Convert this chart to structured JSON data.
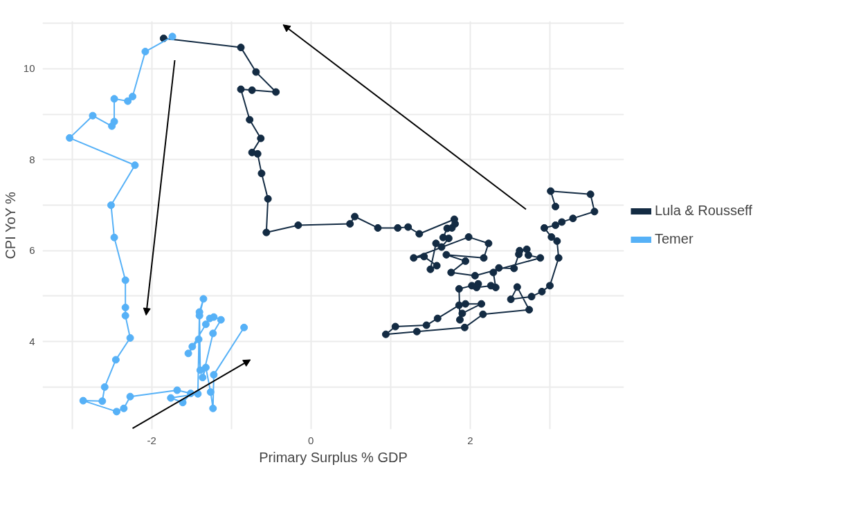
{
  "chart_data": {
    "type": "line",
    "xlabel": "Primary Surplus % GDP",
    "ylabel": "CPI YoY %",
    "marker": "circle",
    "grid": true,
    "legend": "right",
    "xlim": [
      -3.37,
      3.93
    ],
    "ylim": [
      2.07,
      11.05
    ],
    "xticks": [
      {
        "value": -3,
        "label": null
      },
      -2,
      {
        "value": -1,
        "label": null
      },
      0,
      {
        "value": 1,
        "label": null
      },
      2,
      {
        "value": 3,
        "label": null
      }
    ],
    "yticks": [
      {
        "value": 3,
        "label": null
      },
      4,
      {
        "value": 5,
        "label": null
      },
      6,
      {
        "value": 7,
        "label": null
      },
      8,
      {
        "value": 9,
        "label": null
      },
      10,
      {
        "value": 11,
        "label": null
      }
    ],
    "series": [
      {
        "name": "Lula & Rousseff",
        "color": "#132b43",
        "x": [
          3.07,
          3.01,
          3.51,
          3.56,
          3.29,
          3.15,
          3.07,
          2.93,
          3.02,
          3.09,
          3.11,
          3.0,
          2.9,
          2.77,
          2.51,
          2.59,
          2.74,
          2.16,
          1.93,
          1.33,
          0.94,
          1.06,
          1.45,
          1.59,
          1.86,
          1.94,
          2.14,
          1.9,
          1.87,
          1.86,
          2.02,
          2.1,
          2.08,
          2.26,
          2.32,
          2.29,
          2.36,
          2.55,
          2.61,
          2.62,
          2.71,
          2.73,
          2.88,
          2.06,
          1.76,
          1.94,
          1.7,
          2.17,
          2.23,
          1.98,
          1.29,
          1.42,
          1.58,
          1.5,
          1.57,
          1.64,
          1.73,
          1.66,
          1.71,
          1.77,
          1.81,
          1.8,
          1.36,
          1.22,
          1.09,
          0.84,
          0.55,
          0.49,
          -0.16,
          -0.56,
          -0.54,
          -0.62,
          -0.67,
          -0.74,
          -0.63,
          -0.77,
          -0.88,
          -0.74,
          -0.44,
          -0.69,
          -0.88,
          -1.85
        ],
        "values": [
          6.97,
          7.31,
          7.24,
          6.86,
          6.71,
          6.63,
          6.56,
          6.5,
          6.3,
          6.21,
          5.84,
          5.23,
          5.1,
          4.99,
          4.93,
          5.2,
          4.7,
          4.6,
          4.31,
          4.22,
          4.16,
          4.33,
          4.36,
          4.51,
          4.8,
          4.83,
          4.83,
          4.62,
          4.48,
          5.16,
          5.23,
          5.27,
          5.19,
          5.23,
          5.19,
          5.52,
          5.62,
          5.61,
          5.92,
          6.0,
          6.03,
          5.9,
          5.84,
          5.45,
          5.52,
          5.77,
          5.91,
          5.84,
          6.16,
          6.3,
          5.84,
          5.87,
          5.67,
          5.59,
          6.16,
          6.08,
          6.27,
          6.29,
          6.49,
          6.5,
          6.59,
          6.69,
          6.37,
          6.52,
          6.5,
          6.5,
          6.75,
          6.59,
          6.56,
          6.4,
          7.14,
          7.7,
          8.13,
          8.16,
          8.47,
          8.88,
          9.55,
          9.53,
          9.49,
          9.93,
          10.47,
          10.67
        ]
      },
      {
        "name": "Temer",
        "color": "#56b1f7",
        "x": [
          -1.74,
          -2.08,
          -2.24,
          -2.3,
          -2.47,
          -2.47,
          -2.5,
          -2.74,
          -3.03,
          -2.21,
          -2.51,
          -2.47,
          -2.33,
          -2.33,
          -2.33,
          -2.27,
          -2.45,
          -2.59,
          -2.62,
          -2.86,
          -2.44,
          -2.35,
          -2.27,
          -1.68,
          -1.51,
          -1.61,
          -1.76,
          -1.42,
          -1.4,
          -1.35,
          -1.4,
          -1.39,
          -1.41,
          -1.54,
          -1.49,
          -1.32,
          -1.27,
          -1.22,
          -1.13,
          -1.23,
          -1.36,
          -1.32,
          -1.26,
          -1.23,
          -1.22,
          -0.84
        ],
        "values": [
          10.71,
          10.38,
          9.39,
          9.29,
          9.34,
          8.84,
          8.74,
          8.97,
          8.48,
          7.88,
          7.0,
          6.29,
          5.35,
          4.75,
          4.57,
          4.08,
          3.6,
          3.0,
          2.69,
          2.7,
          2.46,
          2.53,
          2.79,
          2.93,
          2.86,
          2.66,
          2.76,
          2.85,
          4.65,
          4.94,
          4.57,
          3.37,
          4.05,
          3.74,
          3.89,
          4.38,
          4.51,
          4.54,
          4.48,
          4.18,
          3.21,
          3.43,
          2.89,
          2.53,
          3.27,
          4.31
        ]
      }
    ]
  }
}
